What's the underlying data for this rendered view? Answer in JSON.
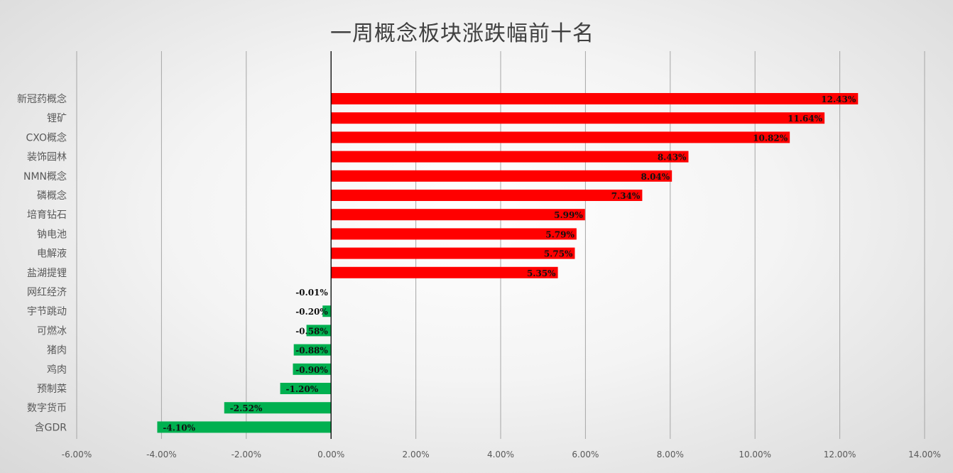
{
  "chart_data": {
    "type": "bar",
    "orientation": "horizontal",
    "title": "一周概念板块涨跌幅前十名",
    "categories": [
      "新冠药概念",
      "锂矿",
      "CXO概念",
      "装饰园林",
      "NMN概念",
      "磷概念",
      "培育钻石",
      "钠电池",
      "电解液",
      "盐湖提锂",
      "网红经济",
      "宇节跳动",
      "可燃冰",
      "猪肉",
      "鸡肉",
      "预制菜",
      "数字货币",
      "含GDR"
    ],
    "values": [
      12.43,
      11.64,
      10.82,
      8.43,
      8.04,
      7.34,
      5.99,
      5.79,
      5.75,
      5.35,
      -0.01,
      -0.2,
      -0.58,
      -0.88,
      -0.9,
      -1.2,
      -2.52,
      -4.1
    ],
    "data_labels": [
      "12.43%",
      "11.64%",
      "10.82%",
      "8.43%",
      "8.04%",
      "7.34%",
      "5.99%",
      "5.79%",
      "5.75%",
      "5.35%",
      "-0.01%",
      "-0.20%",
      "-0.58%",
      "-0.88%",
      "-0.90%",
      "-1.20%",
      "-2.52%",
      "-4.10%"
    ],
    "x_ticks": [
      -6,
      -4,
      -2,
      0,
      2,
      4,
      6,
      8,
      10,
      12,
      14
    ],
    "x_tick_labels": [
      "-6.00%",
      "-4.00%",
      "-2.00%",
      "0.00%",
      "2.00%",
      "4.00%",
      "6.00%",
      "8.00%",
      "10.00%",
      "12.00%",
      "14.00%"
    ],
    "xlim": [
      -6,
      14
    ],
    "unit": "%",
    "grid": true,
    "legend": "none",
    "colors": {
      "positive": "#ff0000",
      "negative": "#00b050",
      "grid": "#a6a6a6",
      "zero_axis": "#000000"
    }
  }
}
